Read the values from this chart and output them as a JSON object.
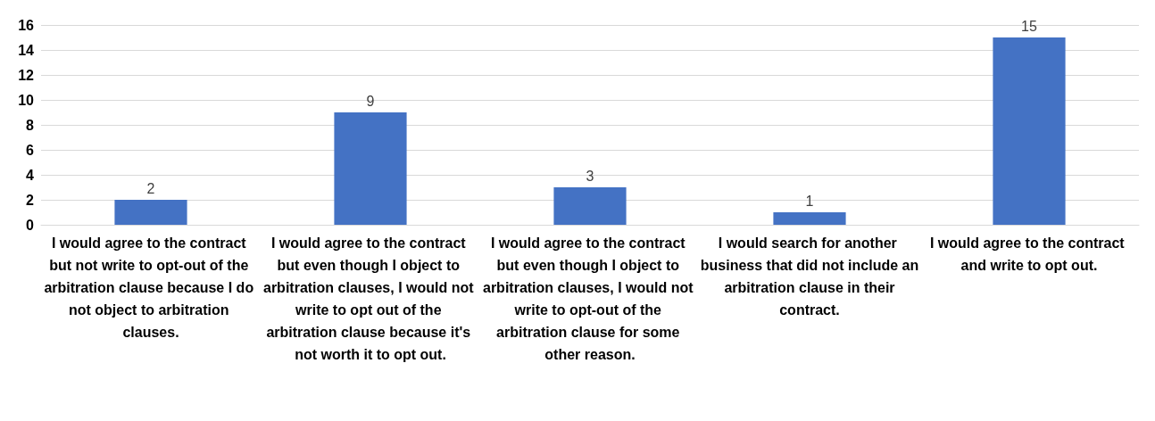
{
  "chart_data": {
    "type": "bar",
    "categories": [
      "I would agree to the contract but not write to opt-out of the arbitration clause because I do not object to arbitration clauses.",
      "I would agree to the contract but even though I object to arbitration clauses, I would not write to opt out of the arbitration clause because it's not worth it to opt out.",
      "I would agree to the contract but even though I object to arbitration clauses, I would not write to opt-out of the arbitration clause for some other reason.",
      "I would search for another business that did not include an arbitration clause in their contract.",
      "I would agree to the contract and write to opt out."
    ],
    "values": [
      2,
      9,
      3,
      1,
      15
    ],
    "color": "#4472c4",
    "ylim": [
      0,
      16
    ],
    "yticks": [
      0,
      2,
      4,
      6,
      8,
      10,
      12,
      14,
      16
    ],
    "grid": "y",
    "data_labels": true
  }
}
